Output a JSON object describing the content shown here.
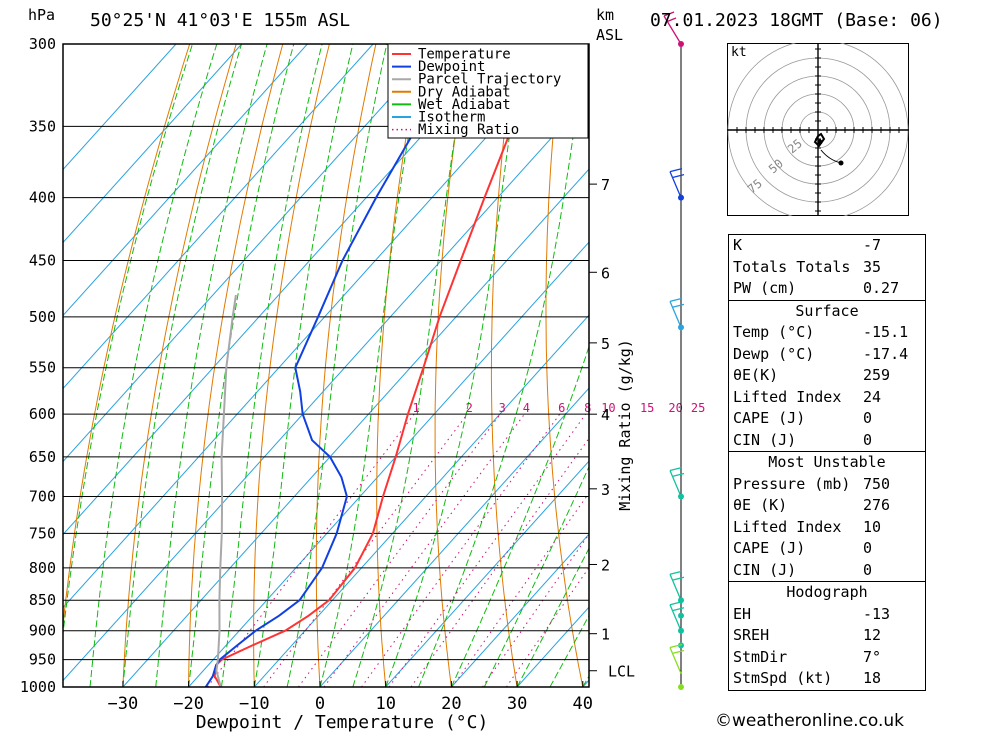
{
  "header": {
    "hpa_unit": "hPa",
    "location": "50°25'N  41°03'E  155m  ASL",
    "km_unit": "km",
    "asl_unit": "ASL",
    "datetime": "07.01.2023  18GMT  (Base: 06)"
  },
  "axes": {
    "xlabel": "Dewpoint / Temperature (°C)",
    "mixing_label": "Mixing Ratio (g/kg)",
    "lcl_label": "LCL"
  },
  "legend": {
    "items": [
      {
        "label": "Temperature",
        "color": "#ff3333",
        "style": "solid"
      },
      {
        "label": "Dewpoint",
        "color": "#1040e0",
        "style": "solid"
      },
      {
        "label": "Parcel Trajectory",
        "color": "#a8a8a8",
        "style": "solid"
      },
      {
        "label": "Dry Adiabat",
        "color": "#e07a00",
        "style": "solid"
      },
      {
        "label": "Wet Adiabat",
        "color": "#11bb11",
        "style": "solid"
      },
      {
        "label": "Isotherm",
        "color": "#2aa3e0",
        "style": "solid"
      },
      {
        "label": "Mixing Ratio",
        "color": "#cc1177",
        "style": "dotted"
      }
    ]
  },
  "chart_data": {
    "type": "line",
    "title": "50°25'N 41°03'E 155m ASL",
    "xlabel": "Dewpoint / Temperature (°C)",
    "ylabel": "hPa",
    "x_ticks": [
      -30,
      -20,
      -10,
      0,
      10,
      20,
      30,
      40
    ],
    "xlim": [
      -40,
      40
    ],
    "pressure_levels": [
      300,
      350,
      400,
      450,
      500,
      550,
      600,
      650,
      700,
      750,
      800,
      850,
      900,
      950,
      1000
    ],
    "ylim": [
      1000,
      300
    ],
    "km_ticks": [
      {
        "km": "1",
        "p": 905
      },
      {
        "km": "2",
        "p": 795
      },
      {
        "km": "3",
        "p": 690
      },
      {
        "km": "4",
        "p": 600
      },
      {
        "km": "5",
        "p": 525
      },
      {
        "km": "6",
        "p": 460
      },
      {
        "km": "7",
        "p": 390
      }
    ],
    "lcl_pressure": 970,
    "mixing_ratio_labels": [
      "1",
      "2",
      "3",
      "4",
      "6",
      "8",
      "10",
      "15",
      "20",
      "25"
    ],
    "series": [
      {
        "name": "Temperature",
        "color": "#ff3333",
        "points": [
          [
            1000,
            -15.1
          ],
          [
            980,
            -17.5
          ],
          [
            960,
            -18.8
          ],
          [
            950,
            -18.7
          ],
          [
            925,
            -16.0
          ],
          [
            900,
            -13.0
          ],
          [
            875,
            -11.5
          ],
          [
            850,
            -10.5
          ],
          [
            800,
            -11.0
          ],
          [
            750,
            -13.0
          ],
          [
            700,
            -16.5
          ],
          [
            650,
            -20.0
          ],
          [
            600,
            -24.0
          ],
          [
            550,
            -28.0
          ],
          [
            500,
            -32.5
          ],
          [
            450,
            -37.0
          ],
          [
            400,
            -42.0
          ],
          [
            350,
            -47.5
          ],
          [
            300,
            -48.5
          ]
        ]
      },
      {
        "name": "Dewpoint",
        "color": "#1040e0",
        "points": [
          [
            1000,
            -17.4
          ],
          [
            980,
            -17.8
          ],
          [
            960,
            -18.8
          ],
          [
            950,
            -19.0
          ],
          [
            925,
            -18.3
          ],
          [
            900,
            -17.5
          ],
          [
            875,
            -16.0
          ],
          [
            850,
            -15.0
          ],
          [
            800,
            -16.0
          ],
          [
            750,
            -18.5
          ],
          [
            700,
            -22.0
          ],
          [
            675,
            -25.5
          ],
          [
            650,
            -30.0
          ],
          [
            630,
            -35.0
          ],
          [
            600,
            -40.0
          ],
          [
            575,
            -43.5
          ],
          [
            550,
            -47.5
          ],
          [
            500,
            -51.0
          ],
          [
            450,
            -55.0
          ],
          [
            400,
            -58.5
          ],
          [
            350,
            -62.0
          ],
          [
            300,
            -63.0
          ]
        ]
      },
      {
        "name": "Parcel Trajectory",
        "color": "#a8a8a8",
        "points": [
          [
            1000,
            -15.1
          ],
          [
            970,
            -18.0
          ],
          [
            950,
            -19.3
          ],
          [
            900,
            -23.0
          ],
          [
            850,
            -27.2
          ],
          [
            800,
            -31.5
          ],
          [
            750,
            -36.0
          ],
          [
            700,
            -41.0
          ],
          [
            650,
            -46.5
          ],
          [
            600,
            -52.0
          ],
          [
            550,
            -58.0
          ],
          [
            500,
            -64.0
          ],
          [
            480,
            -66.5
          ]
        ]
      }
    ]
  },
  "wind_profile": {
    "dots": [
      {
        "p": 300,
        "color": "#cc1177"
      },
      {
        "p": 400,
        "color": "#1040e0"
      },
      {
        "p": 510,
        "color": "#2aa3e0"
      },
      {
        "p": 700,
        "color": "#11c2a0"
      },
      {
        "p": 850,
        "color": "#11c2a0"
      },
      {
        "p": 875,
        "color": "#11c2a0"
      },
      {
        "p": 900,
        "color": "#11c2a0"
      },
      {
        "p": 925,
        "color": "#11c2a0"
      },
      {
        "p": 1000,
        "color": "#88dd22"
      }
    ]
  },
  "hodograph": {
    "unit": "kt",
    "ring_labels": [
      "25",
      "50",
      "75"
    ]
  },
  "indices": {
    "k": {
      "label": "K",
      "value": "-7"
    },
    "tt": {
      "label": "Totals Totals",
      "value": "35"
    },
    "pw": {
      "label": "PW (cm)",
      "value": "0.27"
    }
  },
  "surface": {
    "title": "Surface",
    "temp": {
      "label": "Temp (°C)",
      "value": "-15.1"
    },
    "dewp": {
      "label": "Dewp (°C)",
      "value": "-17.4"
    },
    "theta_e": {
      "label": "θE(K)",
      "value": "259"
    },
    "li": {
      "label": "Lifted Index",
      "value": "24"
    },
    "cape": {
      "label": "CAPE (J)",
      "value": "0"
    },
    "cin": {
      "label": "CIN (J)",
      "value": "0"
    }
  },
  "most_unstable": {
    "title": "Most Unstable",
    "pressure": {
      "label": "Pressure (mb)",
      "value": "750"
    },
    "theta_e": {
      "label": "θE (K)",
      "value": "276"
    },
    "li": {
      "label": "Lifted Index",
      "value": "10"
    },
    "cape": {
      "label": "CAPE (J)",
      "value": "0"
    },
    "cin": {
      "label": "CIN (J)",
      "value": "0"
    }
  },
  "hodo_params": {
    "title": "Hodograph",
    "eh": {
      "label": "EH",
      "value": "-13"
    },
    "sreh": {
      "label": "SREH",
      "value": "12"
    },
    "stmdir": {
      "label": "StmDir",
      "value": "7°"
    },
    "stmspd": {
      "label": "StmSpd (kt)",
      "value": "18"
    }
  },
  "footer": {
    "copyright": "©weatheronline.co.uk"
  }
}
